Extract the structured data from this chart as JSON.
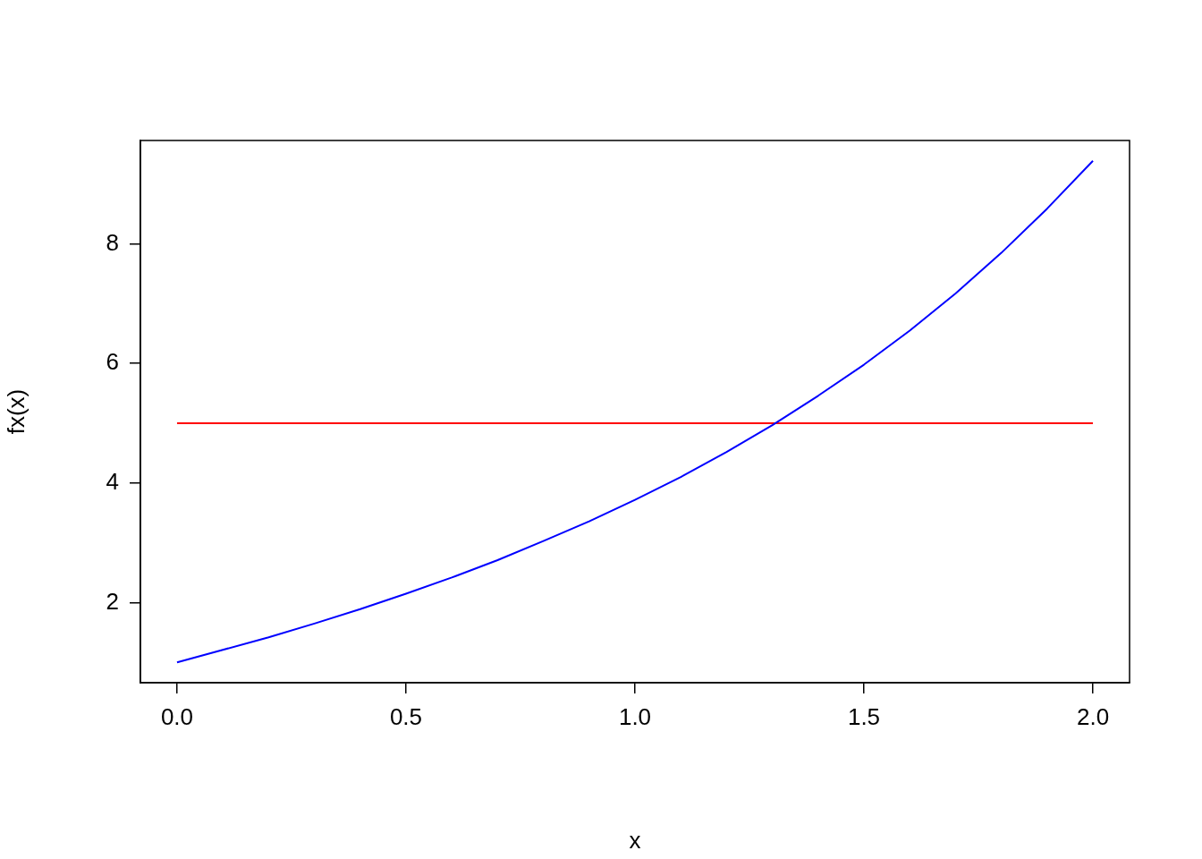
{
  "chart_data": {
    "type": "line",
    "xlabel": "x",
    "ylabel": "fx(x)",
    "xlim": [
      -0.08,
      2.08
    ],
    "xticks": [
      {
        "value": 0,
        "label": "0.0"
      },
      0.5,
      {
        "value": 1,
        "label": "1.0"
      },
      1.5,
      {
        "value": 2,
        "label": "2.0"
      }
    ],
    "ylim": [
      0.66,
      9.73
    ],
    "yticks": [
      2,
      4,
      6,
      8
    ],
    "grid": false,
    "legend": false,
    "marker": "none",
    "line_style": "solid",
    "series": [
      {
        "color": "#0000ff",
        "x": [
          0,
          0.1,
          0.2,
          0.3,
          0.4,
          0.5,
          0.6,
          0.7,
          0.8,
          0.9,
          1.0,
          1.1,
          1.2,
          1.3,
          1.4,
          1.5,
          1.6,
          1.7,
          1.8,
          1.9,
          2.0
        ],
        "values": [
          1.0,
          1.21,
          1.42,
          1.65,
          1.89,
          2.15,
          2.42,
          2.71,
          3.03,
          3.36,
          3.72,
          4.1,
          4.52,
          4.97,
          5.46,
          5.98,
          6.55,
          7.17,
          7.85,
          8.59,
          9.39
        ]
      },
      {
        "color": "#ff0000",
        "x": [
          0,
          2
        ],
        "values": [
          5,
          5
        ]
      }
    ]
  }
}
